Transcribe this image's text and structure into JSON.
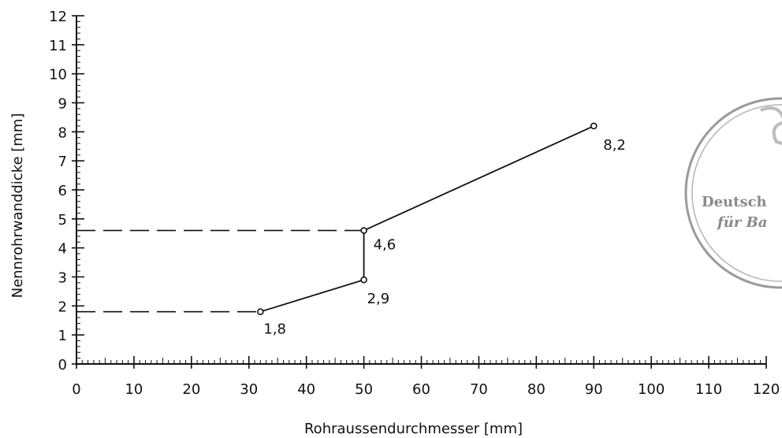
{
  "chart_data": {
    "type": "line",
    "xlabel": "Rohraussendurchmesser [mm]",
    "ylabel": "Nennrohrwanddicke [mm]",
    "xlim": [
      0,
      120
    ],
    "ylim": [
      0,
      12
    ],
    "x_ticks": [
      0,
      10,
      20,
      30,
      40,
      50,
      60,
      70,
      80,
      90,
      100,
      110,
      120
    ],
    "y_ticks": [
      0,
      1,
      2,
      3,
      4,
      5,
      6,
      7,
      8,
      9,
      10,
      11,
      12
    ],
    "grid": false,
    "series": [
      {
        "points": [
          [
            32,
            1.8
          ],
          [
            50,
            2.9
          ],
          [
            50,
            4.6
          ],
          [
            90,
            8.2
          ]
        ],
        "labels": [
          "1,8",
          "2,9",
          "4,6",
          "8,2"
        ]
      }
    ],
    "reference_lines": [
      {
        "from": [
          0,
          1.8
        ],
        "to": [
          32,
          1.8
        ],
        "style": "dashed"
      },
      {
        "from": [
          0,
          4.6
        ],
        "to": [
          50,
          4.6
        ],
        "style": "dashed"
      }
    ]
  },
  "stamp": {
    "lines": [
      "Deutsch",
      "für Ba"
    ]
  }
}
